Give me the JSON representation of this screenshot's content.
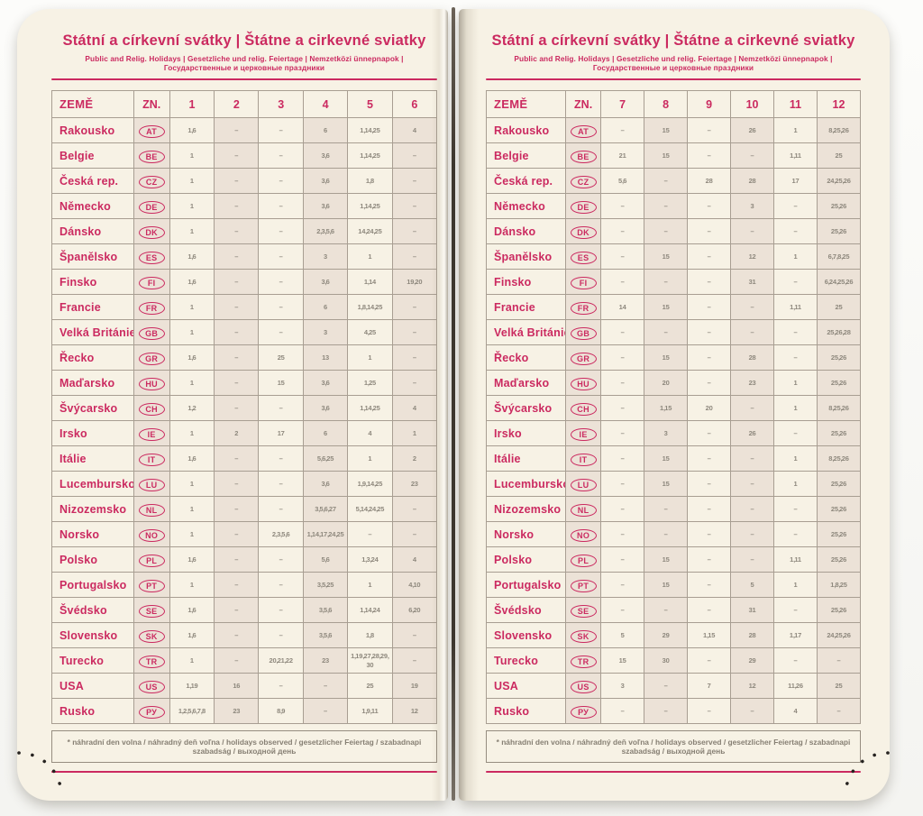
{
  "colors": {
    "accent": "#cb2a60",
    "page": "#f7f2e5",
    "tint": "#ece2d7",
    "value_text": "#8e887d"
  },
  "title": "Státní a církevní svátky | Štátne a cirkevné sviatky",
  "subtitle": "Public and Relig. Holidays | Gesetzliche und relig. Feiertage | Nemzetközi ünnepnapok | Государственные и церковные праздники",
  "footnote": "* náhradní den volna / náhradný deň voľna / holidays observed / gesetzlicher Feiertag / szabadnapi szabadság / выходной день",
  "left_table": {
    "headers": [
      "ZEMĚ",
      "ZN.",
      "1",
      "2",
      "3",
      "4",
      "5",
      "6"
    ],
    "rows": [
      {
        "country": "Rakousko",
        "code": "AT",
        "months": [
          "1, 6",
          "–",
          "–",
          "6",
          "1, 14, 25",
          "4"
        ]
      },
      {
        "country": "Belgie",
        "code": "BE",
        "months": [
          "1",
          "–",
          "–",
          "3, 6",
          "1, 14, 25",
          "–"
        ]
      },
      {
        "country": "Česká rep.",
        "code": "CZ",
        "months": [
          "1",
          "–",
          "–",
          "3, 6",
          "1, 8",
          "–"
        ]
      },
      {
        "country": "Německo",
        "code": "DE",
        "months": [
          "1",
          "–",
          "–",
          "3, 6",
          "1, 14, 25",
          "–"
        ]
      },
      {
        "country": "Dánsko",
        "code": "DK",
        "months": [
          "1",
          "–",
          "–",
          "2, 3, 5, 6",
          "14, 24, 25",
          "–"
        ]
      },
      {
        "country": "Španělsko",
        "code": "ES",
        "months": [
          "1, 6",
          "–",
          "–",
          "3",
          "1",
          "–"
        ]
      },
      {
        "country": "Finsko",
        "code": "FI",
        "months": [
          "1, 6",
          "–",
          "–",
          "3, 6",
          "1, 14",
          "19, 20"
        ]
      },
      {
        "country": "Francie",
        "code": "FR",
        "months": [
          "1",
          "–",
          "–",
          "6",
          "1, 8, 14, 25",
          "–"
        ]
      },
      {
        "country": "Velká Británie",
        "code": "GB",
        "months": [
          "1",
          "–",
          "–",
          "3",
          "4, 25",
          "–"
        ]
      },
      {
        "country": "Řecko",
        "code": "GR",
        "months": [
          "1, 6",
          "–",
          "25",
          "13",
          "1",
          "–"
        ]
      },
      {
        "country": "Maďarsko",
        "code": "HU",
        "months": [
          "1",
          "–",
          "15",
          "3, 6",
          "1, 25",
          "–"
        ]
      },
      {
        "country": "Švýcarsko",
        "code": "CH",
        "months": [
          "1, 2",
          "–",
          "–",
          "3, 6",
          "1, 14, 25",
          "4"
        ]
      },
      {
        "country": "Irsko",
        "code": "IE",
        "months": [
          "1",
          "2",
          "17",
          "6",
          "4",
          "1"
        ]
      },
      {
        "country": "Itálie",
        "code": "IT",
        "months": [
          "1, 6",
          "–",
          "–",
          "5, 6, 25",
          "1",
          "2"
        ]
      },
      {
        "country": "Lucembursko",
        "code": "LU",
        "months": [
          "1",
          "–",
          "–",
          "3, 6",
          "1, 9, 14, 25",
          "23"
        ]
      },
      {
        "country": "Nizozemsko",
        "code": "NL",
        "months": [
          "1",
          "–",
          "–",
          "3, 5, 6, 27",
          "5, 14, 24, 25",
          "–"
        ]
      },
      {
        "country": "Norsko",
        "code": "NO",
        "months": [
          "1",
          "–",
          "2, 3, 5, 6",
          "1, 14, 17, 24, 25",
          "–",
          "–"
        ]
      },
      {
        "country": "Polsko",
        "code": "PL",
        "months": [
          "1, 6",
          "–",
          "–",
          "5, 6",
          "1, 3, 24",
          "4"
        ]
      },
      {
        "country": "Portugalsko",
        "code": "PT",
        "months": [
          "1",
          "–",
          "–",
          "3, 5, 25",
          "1",
          "4, 10"
        ]
      },
      {
        "country": "Švédsko",
        "code": "SE",
        "months": [
          "1, 6",
          "–",
          "–",
          "3, 5, 6",
          "1, 14, 24",
          "6, 20"
        ]
      },
      {
        "country": "Slovensko",
        "code": "SK",
        "months": [
          "1, 6",
          "–",
          "–",
          "3, 5, 6",
          "1, 8",
          "–"
        ]
      },
      {
        "country": "Turecko",
        "code": "TR",
        "months": [
          "1",
          "–",
          "20, 21, 22",
          "23",
          "1, 19, 27, 28, 29, 30",
          "–"
        ]
      },
      {
        "country": "USA",
        "code": "US",
        "months": [
          "1, 19",
          "16",
          "–",
          "–",
          "25",
          "19"
        ]
      },
      {
        "country": "Rusko",
        "code": "РУ",
        "months": [
          "1, 2, 5, 6, 7, 8",
          "23",
          "8, 9",
          "–",
          "1, 9, 11",
          "12"
        ]
      }
    ]
  },
  "right_table": {
    "headers": [
      "ZEMĚ",
      "ZN.",
      "7",
      "8",
      "9",
      "10",
      "11",
      "12"
    ],
    "rows": [
      {
        "country": "Rakousko",
        "code": "AT",
        "months": [
          "–",
          "15",
          "–",
          "26",
          "1",
          "8, 25, 26"
        ]
      },
      {
        "country": "Belgie",
        "code": "BE",
        "months": [
          "21",
          "15",
          "–",
          "–",
          "1, 11",
          "25"
        ]
      },
      {
        "country": "Česká rep.",
        "code": "CZ",
        "months": [
          "5, 6",
          "–",
          "28",
          "28",
          "17",
          "24, 25, 26"
        ]
      },
      {
        "country": "Německo",
        "code": "DE",
        "months": [
          "–",
          "–",
          "–",
          "3",
          "–",
          "25, 26"
        ]
      },
      {
        "country": "Dánsko",
        "code": "DK",
        "months": [
          "–",
          "–",
          "–",
          "–",
          "–",
          "25, 26"
        ]
      },
      {
        "country": "Španělsko",
        "code": "ES",
        "months": [
          "–",
          "15",
          "–",
          "12",
          "1",
          "6, 7, 8, 25"
        ]
      },
      {
        "country": "Finsko",
        "code": "FI",
        "months": [
          "–",
          "–",
          "–",
          "31",
          "–",
          "6, 24, 25, 26"
        ]
      },
      {
        "country": "Francie",
        "code": "FR",
        "months": [
          "14",
          "15",
          "–",
          "–",
          "1, 11",
          "25"
        ]
      },
      {
        "country": "Velká Británie",
        "code": "GB",
        "months": [
          "–",
          "–",
          "–",
          "–",
          "–",
          "25, 26, 28"
        ]
      },
      {
        "country": "Řecko",
        "code": "GR",
        "months": [
          "–",
          "15",
          "–",
          "28",
          "–",
          "25, 26"
        ]
      },
      {
        "country": "Maďarsko",
        "code": "HU",
        "months": [
          "–",
          "20",
          "–",
          "23",
          "1",
          "25, 26"
        ]
      },
      {
        "country": "Švýcarsko",
        "code": "CH",
        "months": [
          "–",
          "1, 15",
          "20",
          "–",
          "1",
          "8, 25, 26"
        ]
      },
      {
        "country": "Irsko",
        "code": "IE",
        "months": [
          "–",
          "3",
          "–",
          "26",
          "–",
          "25, 26"
        ]
      },
      {
        "country": "Itálie",
        "code": "IT",
        "months": [
          "–",
          "15",
          "–",
          "–",
          "1",
          "8, 25, 26"
        ]
      },
      {
        "country": "Lucembursko",
        "code": "LU",
        "months": [
          "–",
          "15",
          "–",
          "–",
          "1",
          "25, 26"
        ]
      },
      {
        "country": "Nizozemsko",
        "code": "NL",
        "months": [
          "–",
          "–",
          "–",
          "–",
          "–",
          "25, 26"
        ]
      },
      {
        "country": "Norsko",
        "code": "NO",
        "months": [
          "–",
          "–",
          "–",
          "–",
          "–",
          "25, 26"
        ]
      },
      {
        "country": "Polsko",
        "code": "PL",
        "months": [
          "–",
          "15",
          "–",
          "–",
          "1, 11",
          "25, 26"
        ]
      },
      {
        "country": "Portugalsko",
        "code": "PT",
        "months": [
          "–",
          "15",
          "–",
          "5",
          "1",
          "1, 8, 25"
        ]
      },
      {
        "country": "Švédsko",
        "code": "SE",
        "months": [
          "–",
          "–",
          "–",
          "31",
          "–",
          "25, 26"
        ]
      },
      {
        "country": "Slovensko",
        "code": "SK",
        "months": [
          "5",
          "29",
          "1, 15",
          "28",
          "1, 17",
          "24, 25, 26"
        ]
      },
      {
        "country": "Turecko",
        "code": "TR",
        "months": [
          "15",
          "30",
          "–",
          "29",
          "–",
          "–"
        ]
      },
      {
        "country": "USA",
        "code": "US",
        "months": [
          "3",
          "–",
          "7",
          "12",
          "11, 26",
          "25"
        ]
      },
      {
        "country": "Rusko",
        "code": "РУ",
        "months": [
          "–",
          "–",
          "–",
          "–",
          "4",
          "–"
        ]
      }
    ]
  }
}
